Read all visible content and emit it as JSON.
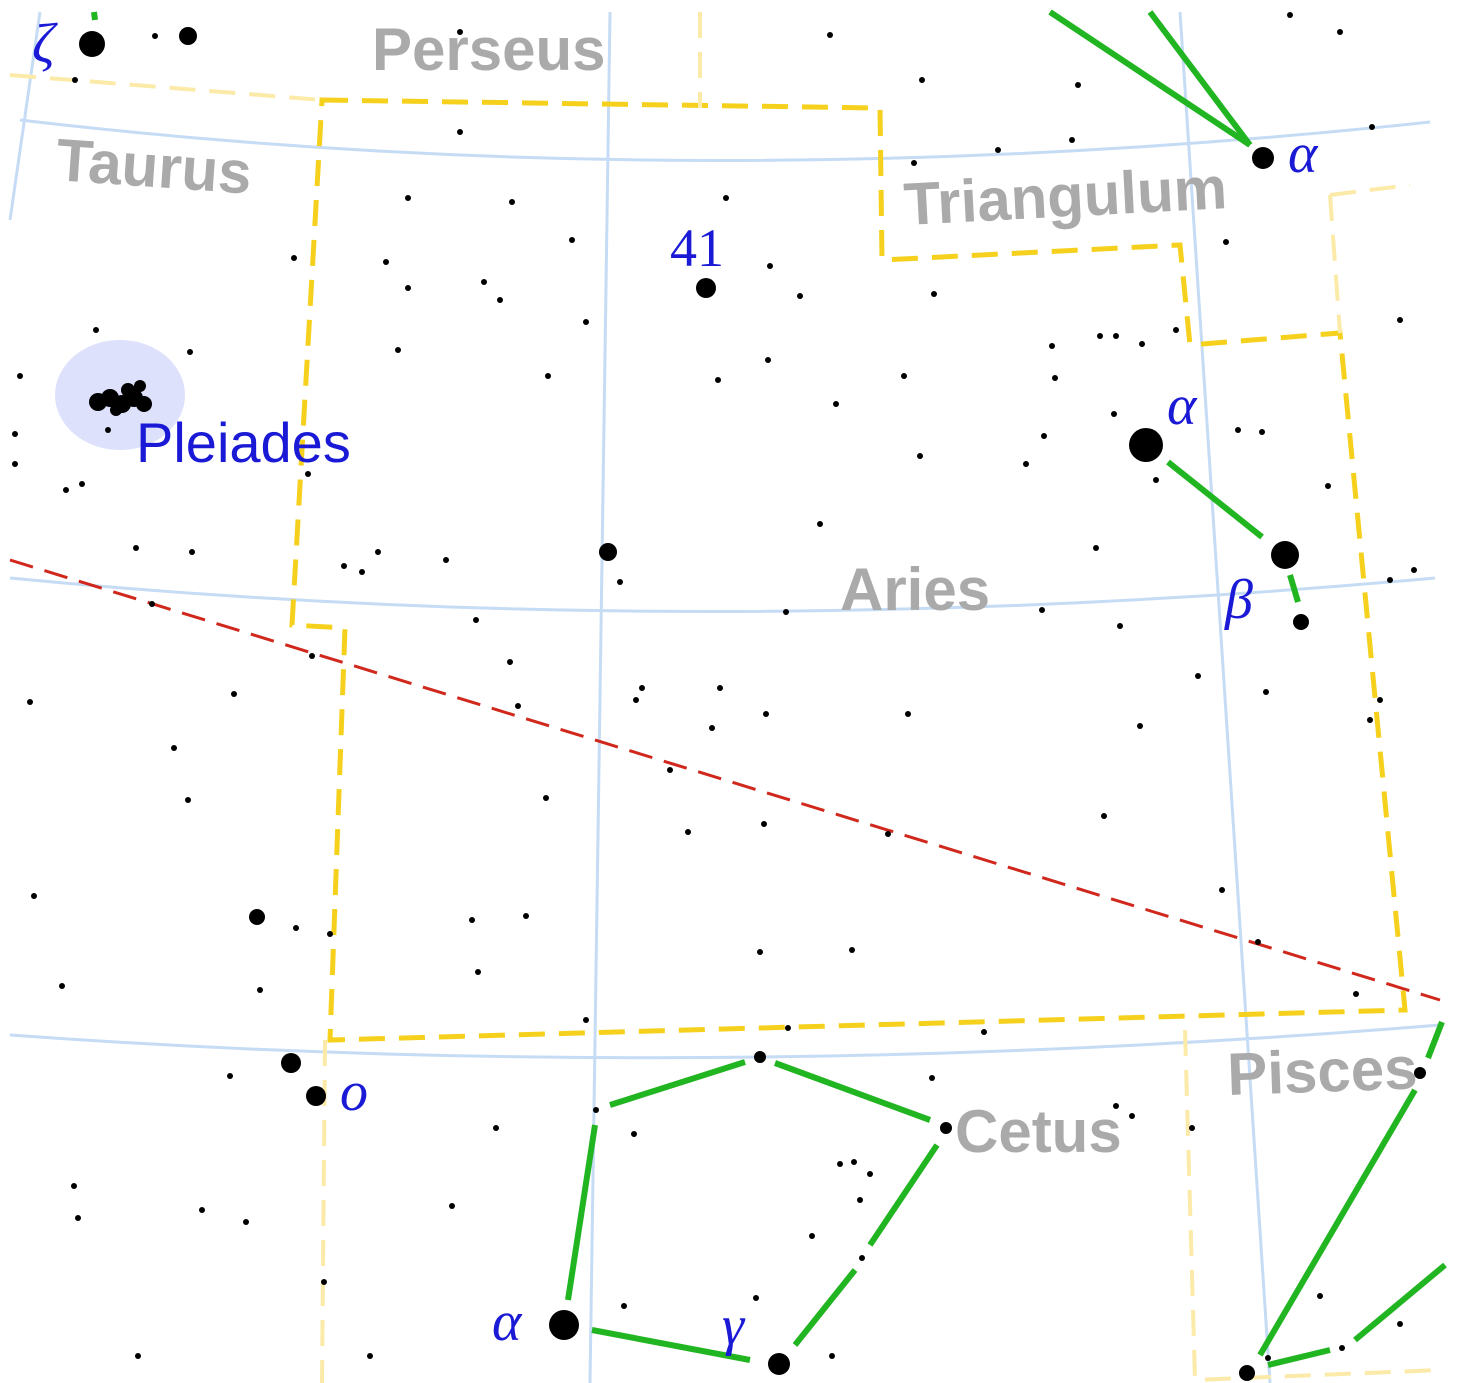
{
  "constellations": [
    "Perseus",
    "Taurus",
    "Triangulum",
    "Aries",
    "Pisces",
    "Cetus"
  ],
  "stars": [
    "ζ",
    "α",
    "41",
    "α",
    "β",
    "o",
    "α",
    "γ"
  ],
  "objects": [
    "Pleiades"
  ]
}
